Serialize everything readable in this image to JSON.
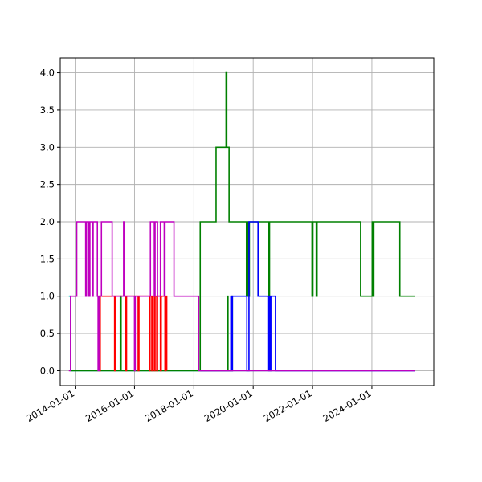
{
  "chart_data": {
    "type": "line",
    "title": "",
    "xlabel": "",
    "ylabel": "",
    "x_type": "date",
    "xlim": [
      "2013-07-01",
      "2026-02-01"
    ],
    "ylim": [
      -0.2,
      4.2
    ],
    "grid": true,
    "legend": "none",
    "x_ticks": [
      "2014-01-01",
      "2016-01-01",
      "2018-01-01",
      "2020-01-01",
      "2022-01-01",
      "2024-01-01"
    ],
    "y_ticks": [
      "0.0",
      "0.5",
      "1.0",
      "1.5",
      "2.0",
      "2.5",
      "3.0",
      "3.5",
      "4.0"
    ],
    "series": [
      {
        "color": "#00bfbf",
        "step": "post",
        "points": [
          [
            "2013-10-15",
            1
          ],
          [
            "2013-11-05",
            0
          ],
          [
            "2025-06-15",
            0
          ]
        ]
      },
      {
        "color": "#008000",
        "step": "post",
        "points": [
          [
            "2013-11-05",
            0
          ],
          [
            "2015-07-10",
            1
          ],
          [
            "2015-07-20",
            0
          ],
          [
            "2019-02-15",
            1
          ],
          [
            "2019-02-25",
            0
          ],
          [
            "2019-04-10",
            1
          ],
          [
            "2019-04-20",
            0
          ],
          [
            "2018-03-20",
            2
          ],
          [
            "2018-10-01",
            3
          ],
          [
            "2019-02-01",
            4
          ],
          [
            "2019-02-10",
            3
          ],
          [
            "2019-03-10",
            2
          ],
          [
            "2019-10-10",
            1
          ],
          [
            "2019-10-20",
            2
          ],
          [
            "2019-10-25",
            1
          ],
          [
            "2019-11-01",
            2
          ],
          [
            "2019-11-10",
            1
          ],
          [
            "2019-11-15",
            2
          ],
          [
            "2020-03-01",
            1
          ],
          [
            "2020-03-10",
            2
          ],
          [
            "2020-07-10",
            1
          ],
          [
            "2020-07-20",
            2
          ],
          [
            "2021-12-25",
            1
          ],
          [
            "2022-01-05",
            2
          ],
          [
            "2022-02-15",
            1
          ],
          [
            "2022-02-25",
            2
          ],
          [
            "2023-08-15",
            1
          ],
          [
            "2024-01-05",
            2
          ],
          [
            "2024-01-15",
            1
          ],
          [
            "2024-01-25",
            2
          ],
          [
            "2024-12-10",
            1
          ],
          [
            "2025-06-15",
            1
          ]
        ]
      },
      {
        "color": "#0000ff",
        "step": "post",
        "points": [
          [
            "2018-03-20",
            0
          ],
          [
            "2019-04-01",
            1
          ],
          [
            "2019-04-10",
            0
          ],
          [
            "2019-04-20",
            1
          ],
          [
            "2019-10-15",
            0
          ],
          [
            "2019-11-10",
            2
          ],
          [
            "2020-03-01",
            1
          ],
          [
            "2020-07-01",
            0
          ],
          [
            "2020-07-15",
            1
          ],
          [
            "2020-07-25",
            0
          ],
          [
            "2020-08-05",
            1
          ],
          [
            "2020-10-01",
            0
          ],
          [
            "2025-06-15",
            0
          ]
        ]
      },
      {
        "color": "#ff0000",
        "step": "post",
        "points": [
          [
            "2014-10-15",
            1
          ],
          [
            "2014-11-01",
            0
          ],
          [
            "2014-11-05",
            1
          ],
          [
            "2015-05-01",
            0
          ],
          [
            "2015-05-10",
            1
          ],
          [
            "2015-09-15",
            0
          ],
          [
            "2015-09-25",
            1
          ],
          [
            "2016-02-15",
            0
          ],
          [
            "2016-02-25",
            1
          ],
          [
            "2016-07-01",
            0
          ],
          [
            "2016-07-10",
            1
          ],
          [
            "2016-08-01",
            0
          ],
          [
            "2016-08-10",
            1
          ],
          [
            "2016-09-01",
            0
          ],
          [
            "2016-09-10",
            1
          ],
          [
            "2016-10-01",
            0
          ],
          [
            "2016-10-10",
            1
          ],
          [
            "2016-11-15",
            0
          ],
          [
            "2016-11-25",
            1
          ],
          [
            "2017-01-10",
            0
          ],
          [
            "2017-01-20",
            1
          ],
          [
            "2017-02-01",
            0
          ]
        ]
      },
      {
        "color": "#bf00bf",
        "step": "post",
        "points": [
          [
            "2013-10-15",
            0
          ],
          [
            "2013-11-05",
            1
          ],
          [
            "2014-01-20",
            2
          ],
          [
            "2014-05-10",
            1
          ],
          [
            "2014-05-20",
            2
          ],
          [
            "2014-06-20",
            1
          ],
          [
            "2014-07-01",
            2
          ],
          [
            "2014-08-01",
            1
          ],
          [
            "2014-08-10",
            2
          ],
          [
            "2014-10-01",
            1
          ],
          [
            "2014-10-10",
            0
          ],
          [
            "2014-10-20",
            1
          ],
          [
            "2014-11-20",
            2
          ],
          [
            "2015-04-01",
            1
          ],
          [
            "2015-08-20",
            2
          ],
          [
            "2015-09-01",
            1
          ],
          [
            "2016-01-01",
            0
          ],
          [
            "2016-01-10",
            1
          ],
          [
            "2016-07-15",
            2
          ],
          [
            "2016-09-01",
            1
          ],
          [
            "2016-09-10",
            2
          ],
          [
            "2016-10-10",
            1
          ],
          [
            "2016-11-15",
            2
          ],
          [
            "2017-01-01",
            1
          ],
          [
            "2017-01-10",
            2
          ],
          [
            "2017-05-01",
            1
          ],
          [
            "2018-03-01",
            0
          ],
          [
            "2025-06-15",
            0
          ]
        ]
      }
    ]
  }
}
